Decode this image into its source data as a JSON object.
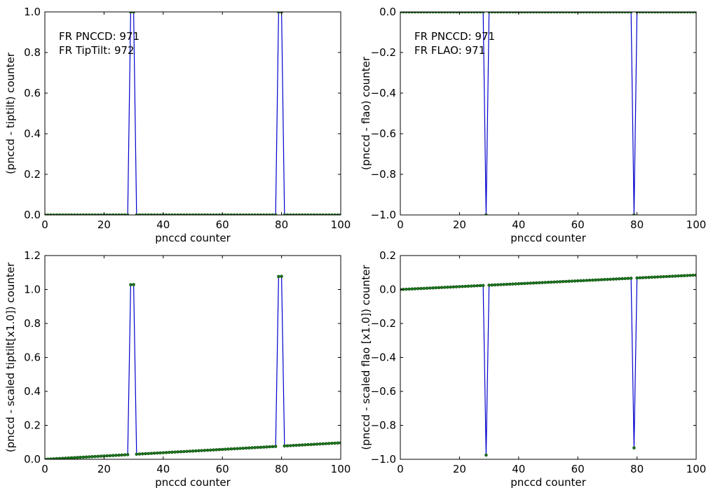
{
  "colors": {
    "line": "#0000cc",
    "marker": "#1a7a1a",
    "marker_edge": "#003300",
    "axes": "#000000",
    "background": "#ffffff"
  },
  "chart_data": [
    {
      "type": "line",
      "xlabel": "pnccd counter",
      "ylabel": "(pnccd - tiptilt) counter",
      "xlim": [
        0,
        100
      ],
      "ylim": [
        0,
        1
      ],
      "xticks": [
        "0",
        "20",
        "40",
        "60",
        "80",
        "100"
      ],
      "yticks": [
        "0.0",
        "0.2",
        "0.4",
        "0.6",
        "0.8",
        "1.0"
      ],
      "annotation": [
        "FR PNCCD: 971",
        "FR TipTilt: 972"
      ],
      "series": [
        {
          "kind": "spikes",
          "base_start": 0,
          "base_end": 0,
          "spike_value": 1,
          "spikes": [
            29,
            30,
            79,
            80
          ]
        }
      ]
    },
    {
      "type": "line",
      "xlabel": "pnccd counter",
      "ylabel": "(pnccd - flao)  counter",
      "xlim": [
        0,
        100
      ],
      "ylim": [
        -1,
        0
      ],
      "xticks": [
        "0",
        "20",
        "40",
        "60",
        "80",
        "100"
      ],
      "yticks": [
        "−1.0",
        "−0.8",
        "−0.6",
        "−0.4",
        "−0.2",
        "0.0"
      ],
      "annotation": [
        "FR PNCCD: 971",
        "FR FLAO: 971"
      ],
      "series": [
        {
          "kind": "spikes",
          "base_start": 0,
          "base_end": 0,
          "spike_value": -1,
          "spikes": [
            29,
            79
          ]
        }
      ]
    },
    {
      "type": "line",
      "xlabel": "pnccd counter",
      "ylabel": "(pnccd - scaled tiptilt[x1.0]) counter",
      "xlim": [
        0,
        100
      ],
      "ylim": [
        0,
        1.2
      ],
      "xticks": [
        "0",
        "20",
        "40",
        "60",
        "80",
        "100"
      ],
      "yticks": [
        "0.0",
        "0.2",
        "0.4",
        "0.6",
        "0.8",
        "1.0",
        "1.2"
      ],
      "annotation": [],
      "series": [
        {
          "kind": "spikes",
          "base_start": 0,
          "base_end": 0.097,
          "spike_value": 1.0,
          "spike_offset": true,
          "spikes": [
            29,
            30,
            79,
            80
          ]
        }
      ]
    },
    {
      "type": "line",
      "xlabel": "pnccd counter",
      "ylabel": "(pnccd - scaled flao [x1.0]) counter",
      "xlim": [
        0,
        100
      ],
      "ylim": [
        -1,
        0.2
      ],
      "xticks": [
        "0",
        "20",
        "40",
        "60",
        "80",
        "100"
      ],
      "yticks": [
        "−1.0",
        "−0.8",
        "−0.6",
        "−0.4",
        "−0.2",
        "0.0",
        "0.2"
      ],
      "annotation": [],
      "series": [
        {
          "kind": "spikes",
          "base_start": 0,
          "base_end": 0.085,
          "spike_value": -1.0,
          "spike_offset": true,
          "spikes": [
            29,
            79
          ]
        }
      ]
    }
  ]
}
